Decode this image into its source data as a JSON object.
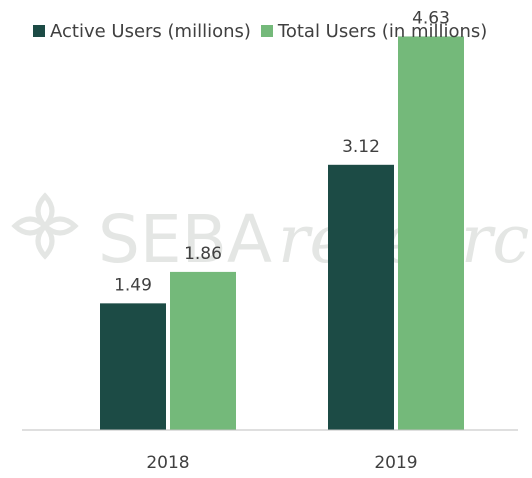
{
  "legend": {
    "items": [
      {
        "label": "Active Users (millions)",
        "color": "#1c4b45"
      },
      {
        "label": "Total Users (in millions)",
        "color": "#74b97a"
      }
    ]
  },
  "watermark": {
    "text_a": "SEBA",
    "text_b": "research"
  },
  "chart_data": {
    "type": "bar",
    "categories": [
      "2018",
      "2019"
    ],
    "series": [
      {
        "name": "Active Users (millions)",
        "values": [
          1.49,
          3.12
        ],
        "color": "#1c4b45"
      },
      {
        "name": "Total Users (in millions)",
        "values": [
          1.86,
          4.63
        ],
        "color": "#74b97a"
      }
    ],
    "data_labels": [
      [
        "1.49",
        "3.12"
      ],
      [
        "1.86",
        "4.63"
      ]
    ],
    "title": "",
    "xlabel": "",
    "ylabel": "",
    "ylim": [
      0,
      5
    ],
    "grid": false,
    "legend_position": "top-left"
  }
}
